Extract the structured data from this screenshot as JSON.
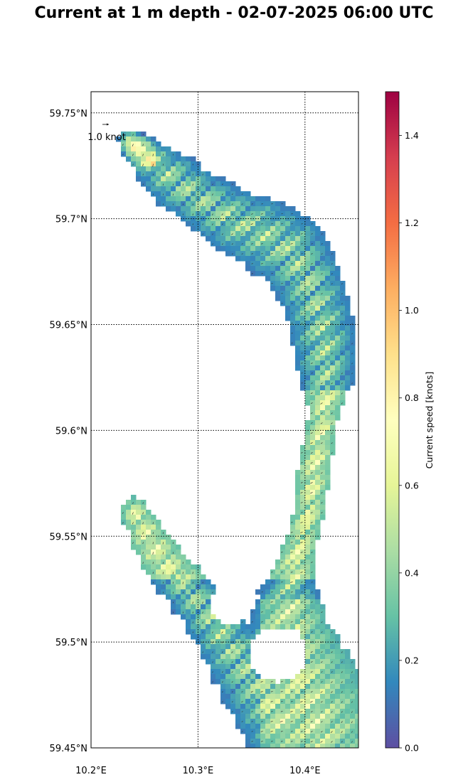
{
  "title": "Current at 1 m depth - 02-07-2025 06:00 UTC",
  "map": {
    "lon_range": [
      10.2,
      10.45
    ],
    "lat_range": [
      59.45,
      59.76
    ],
    "lat_ticks": [
      {
        "value": 59.75,
        "label": "59.75°N"
      },
      {
        "value": 59.7,
        "label": "59.7°N"
      },
      {
        "value": 59.65,
        "label": "59.65°N"
      },
      {
        "value": 59.6,
        "label": "59.6°N"
      },
      {
        "value": 59.55,
        "label": "59.55°N"
      },
      {
        "value": 59.5,
        "label": "59.5°N"
      },
      {
        "value": 59.45,
        "label": "59.45°N"
      }
    ],
    "lon_ticks": [
      {
        "value": 10.2,
        "label": "10.2°E"
      },
      {
        "value": 10.3,
        "label": "10.3°E"
      },
      {
        "value": 10.4,
        "label": "10.4°E"
      }
    ],
    "grid": true,
    "reference_arrow_label": "1.0 knot",
    "fjord_centerline": [
      {
        "lon": 10.237,
        "lat": 59.736,
        "w": 0.012
      },
      {
        "lon": 10.255,
        "lat": 59.728,
        "w": 0.02
      },
      {
        "lon": 10.278,
        "lat": 59.718,
        "w": 0.026
      },
      {
        "lon": 10.3,
        "lat": 59.71,
        "w": 0.026
      },
      {
        "lon": 10.33,
        "lat": 59.7,
        "w": 0.03
      },
      {
        "lon": 10.36,
        "lat": 59.693,
        "w": 0.034
      },
      {
        "lon": 10.385,
        "lat": 59.685,
        "w": 0.036
      },
      {
        "lon": 10.402,
        "lat": 59.672,
        "w": 0.032
      },
      {
        "lon": 10.413,
        "lat": 59.655,
        "w": 0.03
      },
      {
        "lon": 10.418,
        "lat": 59.64,
        "w": 0.03
      },
      {
        "lon": 10.42,
        "lat": 59.625,
        "w": 0.026
      },
      {
        "lon": 10.418,
        "lat": 59.61,
        "w": 0.014
      },
      {
        "lon": 10.413,
        "lat": 59.595,
        "w": 0.014
      },
      {
        "lon": 10.408,
        "lat": 59.58,
        "w": 0.016
      },
      {
        "lon": 10.405,
        "lat": 59.565,
        "w": 0.014
      },
      {
        "lon": 10.398,
        "lat": 59.55,
        "w": 0.014
      },
      {
        "lon": 10.39,
        "lat": 59.535,
        "w": 0.018
      },
      {
        "lon": 10.385,
        "lat": 59.52,
        "w": 0.03
      },
      {
        "lon": 10.385,
        "lat": 59.505,
        "w": 0.04
      },
      {
        "lon": 10.39,
        "lat": 59.49,
        "w": 0.05
      },
      {
        "lon": 10.4,
        "lat": 59.475,
        "w": 0.055
      },
      {
        "lon": 10.41,
        "lat": 59.458,
        "w": 0.06
      }
    ],
    "west_arm_centerline": [
      {
        "lon": 10.24,
        "lat": 59.562,
        "w": 0.012
      },
      {
        "lon": 10.255,
        "lat": 59.548,
        "w": 0.018
      },
      {
        "lon": 10.275,
        "lat": 59.533,
        "w": 0.02
      },
      {
        "lon": 10.298,
        "lat": 59.52,
        "w": 0.022
      },
      {
        "lon": 10.32,
        "lat": 59.505,
        "w": 0.026
      },
      {
        "lon": 10.34,
        "lat": 59.49,
        "w": 0.03
      },
      {
        "lon": 10.36,
        "lat": 59.475,
        "w": 0.034
      },
      {
        "lon": 10.38,
        "lat": 59.462,
        "w": 0.04
      }
    ]
  },
  "colorbar": {
    "label": "Current speed [knots]",
    "range": [
      0.0,
      1.5
    ],
    "ticks": [
      {
        "value": 0.0,
        "label": "0.0"
      },
      {
        "value": 0.2,
        "label": "0.2"
      },
      {
        "value": 0.4,
        "label": "0.4"
      },
      {
        "value": 0.6,
        "label": "0.6"
      },
      {
        "value": 0.8,
        "label": "0.8"
      },
      {
        "value": 1.0,
        "label": "1.0"
      },
      {
        "value": 1.2,
        "label": "1.2"
      },
      {
        "value": 1.4,
        "label": "1.4"
      }
    ],
    "colormap": "Spectral_r",
    "colors": [
      "#5e4fa2",
      "#3288bd",
      "#66c2a5",
      "#abdda4",
      "#e6f598",
      "#ffffbf",
      "#fee08b",
      "#fdae61",
      "#f46d43",
      "#d53e4f",
      "#9e0142"
    ]
  }
}
